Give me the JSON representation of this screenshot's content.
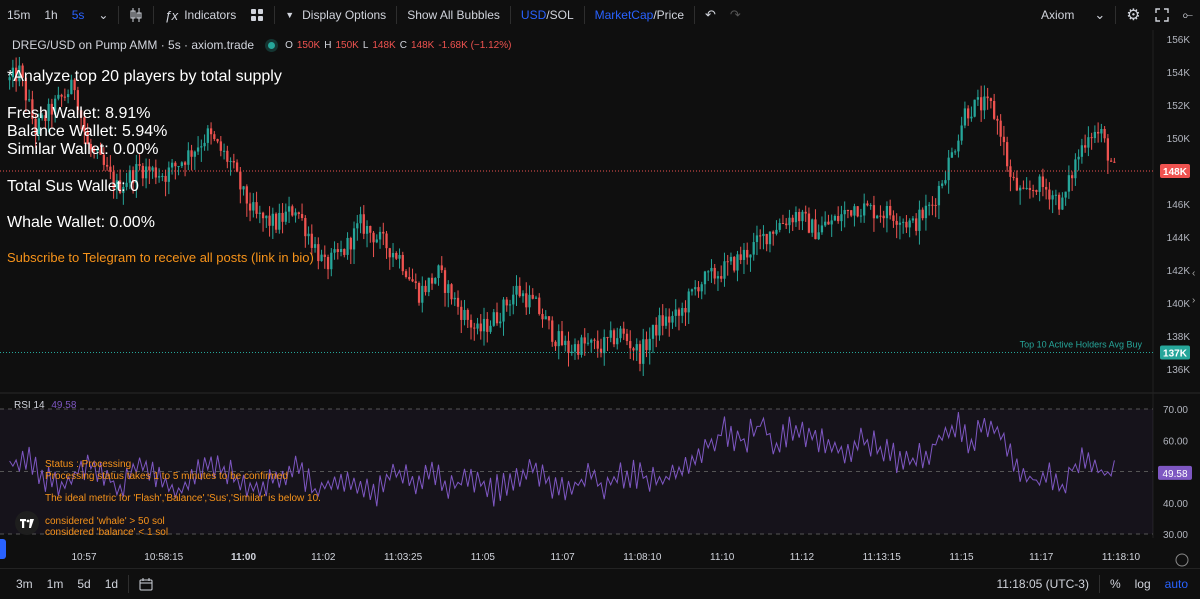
{
  "toolbar": {
    "intervals": [
      "15m",
      "1h",
      "5s"
    ],
    "active_interval": "5s",
    "indicators_label": "Indicators",
    "display_options_label": "Display Options",
    "show_all_bubbles_label": "Show All Bubbles",
    "currency_a": "USD",
    "currency_b": "SOL",
    "metric_a": "MarketCap",
    "metric_b": "Price",
    "account_label": "Axiom"
  },
  "legend": {
    "symbol": "DREG/USD on Pump AMM · 5s · axiom.trade",
    "o_label": "O",
    "o_value": "150K",
    "h_label": "H",
    "h_value": "150K",
    "l_label": "L",
    "l_value": "148K",
    "c_label": "C",
    "c_value": "148K",
    "change": "-1.68K (−1.12%)"
  },
  "overlay": {
    "headline": "*Analyze top 20 players by total supply",
    "fresh": "Fresh Wallet: 8.91%",
    "balance": "Balance Wallet: 5.94%",
    "similar": "Similar Wallet: 0.00%",
    "total_sus": "Total Sus Wallet: 0",
    "whale": "Whale Wallet: 0.00%",
    "subscribe": "Subscribe to Telegram to receive all posts (link in bio)",
    "status": "Status : Processing",
    "processing_note": "Processing status takes 1 to 5 minutes to be confirmed",
    "ideal_metric": "The ideal metric for 'Flash','Balance','Sus','Similar' is below 10.",
    "whale_def": "considered 'whale' > 50 sol",
    "balance_def": "considered 'balance' < 1 sol"
  },
  "colors": {
    "up": "#26a69a",
    "down": "#ef5350",
    "rsi": "#7e57c2",
    "accent": "#2962ff",
    "orange": "#f7931a"
  },
  "chart_data": [
    {
      "type": "candlestick",
      "title": "DREG/USD on Pump AMM · 5s · axiom.trade",
      "y_unit": "market cap (USD)",
      "ylim": [
        135500,
        156800
      ],
      "y_ticks": [
        136000,
        138000,
        140000,
        142000,
        144000,
        146000,
        148000,
        150000,
        152000,
        154000,
        156000
      ],
      "y_tick_labels": [
        "136K",
        "138K",
        "140K",
        "142K",
        "144K",
        "146K",
        "148K",
        "150K",
        "152K",
        "154K",
        "156K"
      ],
      "x_ticks": [
        "10:57",
        "10:58:15",
        "11:00",
        "11:02",
        "11:03:25",
        "11:05",
        "11:07",
        "11:08:10",
        "11:10",
        "11:12",
        "11:13:15",
        "11:15",
        "11:17",
        "11:18:10"
      ],
      "bold_x_ticks": [
        "11:00"
      ],
      "last_price": 148000,
      "last_price_label": "148K",
      "hline": {
        "value": 137000,
        "label": "137K",
        "text": "Top 10 Active Holders Avg Buy"
      },
      "anchors": [
        [
          0,
          153500
        ],
        [
          3,
          154000
        ],
        [
          8,
          150500
        ],
        [
          14,
          152000
        ],
        [
          20,
          153200
        ],
        [
          24,
          149500
        ],
        [
          28,
          148500
        ],
        [
          33,
          147000
        ],
        [
          40,
          148200
        ],
        [
          48,
          147800
        ],
        [
          55,
          149000
        ],
        [
          61,
          150200
        ],
        [
          68,
          148500
        ],
        [
          72,
          146500
        ],
        [
          76,
          145200
        ],
        [
          82,
          144800
        ],
        [
          88,
          145800
        ],
        [
          92,
          144200
        ],
        [
          97,
          142200
        ],
        [
          103,
          143200
        ],
        [
          108,
          144800
        ],
        [
          114,
          143800
        ],
        [
          120,
          142800
        ],
        [
          126,
          140600
        ],
        [
          132,
          141800
        ],
        [
          138,
          139800
        ],
        [
          144,
          138200
        ],
        [
          150,
          139200
        ],
        [
          156,
          140800
        ],
        [
          162,
          139800
        ],
        [
          168,
          137900
        ],
        [
          172,
          137200
        ],
        [
          176,
          137500
        ],
        [
          182,
          137300
        ],
        [
          188,
          138200
        ],
        [
          194,
          136900
        ],
        [
          200,
          138800
        ],
        [
          206,
          139200
        ],
        [
          212,
          141200
        ],
        [
          218,
          141800
        ],
        [
          224,
          142600
        ],
        [
          230,
          143600
        ],
        [
          236,
          144700
        ],
        [
          242,
          145400
        ],
        [
          248,
          144400
        ],
        [
          254,
          145000
        ],
        [
          260,
          145900
        ],
        [
          266,
          145600
        ],
        [
          272,
          145400
        ],
        [
          278,
          144700
        ],
        [
          284,
          146000
        ],
        [
          290,
          149000
        ],
        [
          294,
          151600
        ],
        [
          298,
          152000
        ],
        [
          302,
          151900
        ],
        [
          305,
          150500
        ],
        [
          308,
          147500
        ],
        [
          312,
          146400
        ],
        [
          316,
          147200
        ],
        [
          320,
          146800
        ],
        [
          324,
          146000
        ],
        [
          328,
          148500
        ],
        [
          332,
          150400
        ],
        [
          336,
          150200
        ],
        [
          340,
          148000
        ]
      ],
      "n_candles": 341
    },
    {
      "type": "line",
      "title": "RSI 14",
      "current_value": "49.58",
      "ylim": [
        27.5,
        72.5
      ],
      "y_ticks": [
        30.0,
        40.0,
        50.0,
        60.0,
        70.0
      ],
      "y_tick_labels": [
        "30.00",
        "40.00",
        "50.00",
        "60.00",
        "70.00"
      ],
      "bands": [
        30,
        50,
        70
      ],
      "anchors": [
        [
          0,
          52
        ],
        [
          6,
          55
        ],
        [
          10,
          48
        ],
        [
          16,
          44
        ],
        [
          22,
          52
        ],
        [
          28,
          50
        ],
        [
          34,
          45
        ],
        [
          40,
          52
        ],
        [
          46,
          48
        ],
        [
          52,
          43
        ],
        [
          58,
          51
        ],
        [
          64,
          53
        ],
        [
          70,
          48
        ],
        [
          76,
          44
        ],
        [
          82,
          47
        ],
        [
          88,
          51
        ],
        [
          94,
          44
        ],
        [
          100,
          48
        ],
        [
          106,
          46
        ],
        [
          112,
          42
        ],
        [
          118,
          49
        ],
        [
          124,
          47
        ],
        [
          130,
          51
        ],
        [
          136,
          45
        ],
        [
          142,
          48
        ],
        [
          148,
          43
        ],
        [
          154,
          47
        ],
        [
          160,
          52
        ],
        [
          166,
          46
        ],
        [
          172,
          44
        ],
        [
          178,
          49
        ],
        [
          184,
          45
        ],
        [
          190,
          50
        ],
        [
          196,
          48
        ],
        [
          202,
          47
        ],
        [
          208,
          53
        ],
        [
          214,
          58
        ],
        [
          220,
          63
        ],
        [
          226,
          60
        ],
        [
          232,
          66
        ],
        [
          236,
          58
        ],
        [
          240,
          64
        ],
        [
          246,
          62
        ],
        [
          252,
          58
        ],
        [
          258,
          57
        ],
        [
          264,
          60
        ],
        [
          270,
          56
        ],
        [
          276,
          53
        ],
        [
          282,
          55
        ],
        [
          288,
          62
        ],
        [
          292,
          65
        ],
        [
          296,
          58
        ],
        [
          300,
          67
        ],
        [
          304,
          63
        ],
        [
          308,
          55
        ],
        [
          312,
          50
        ],
        [
          316,
          47
        ],
        [
          320,
          48
        ],
        [
          324,
          45
        ],
        [
          328,
          52
        ],
        [
          332,
          56
        ],
        [
          336,
          50
        ],
        [
          340,
          49.58
        ]
      ]
    }
  ],
  "bottom": {
    "ranges": [
      "3m",
      "1m",
      "5d",
      "1d"
    ],
    "time": "11:18:05 (UTC-3)",
    "percent": "%",
    "log": "log",
    "auto": "auto"
  }
}
